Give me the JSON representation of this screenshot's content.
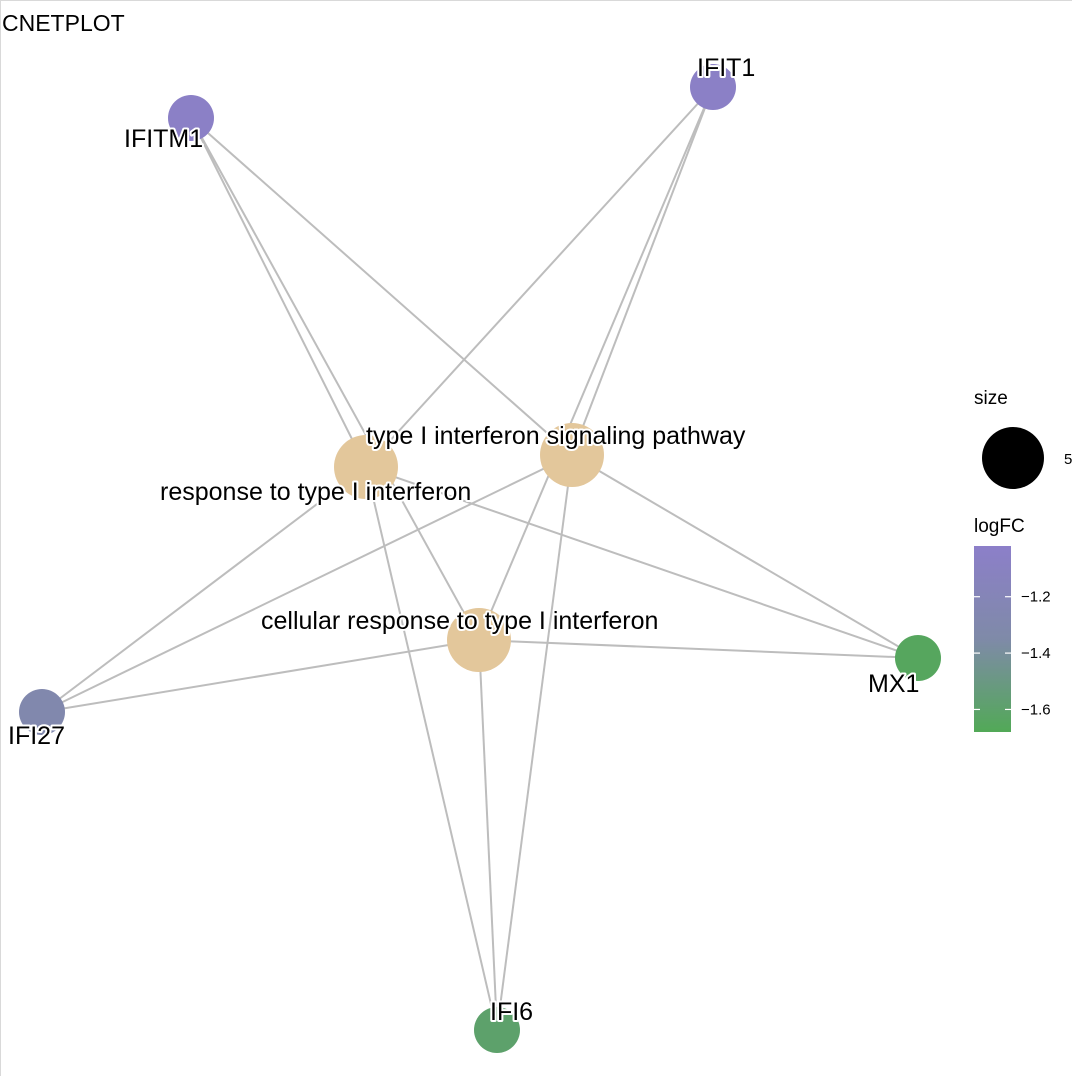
{
  "title": "CNETPLOT",
  "colors": {
    "edge": "#bdbdbd",
    "category_node": "#e3c79b",
    "logfc_high": "#8c7fc9",
    "logfc_mid": "#7f8aa8",
    "logfc_low": "#52a957",
    "size_swatch": "#000000"
  },
  "chart_data": {
    "type": "network",
    "categories": [
      {
        "id": "c_resp",
        "label": "response to type I interferon"
      },
      {
        "id": "c_sig",
        "label": "type I interferon signaling pathway"
      },
      {
        "id": "c_cell",
        "label": "cellular response to type I interferon"
      }
    ],
    "genes": [
      {
        "id": "g_ifitm1",
        "label": "IFITM1",
        "logFC": -1.05
      },
      {
        "id": "g_ifit1",
        "label": "IFIT1",
        "logFC": -1.05
      },
      {
        "id": "g_mx1",
        "label": "MX1",
        "logFC": -1.65
      },
      {
        "id": "g_ifi27",
        "label": "IFI27",
        "logFC": -1.3
      },
      {
        "id": "g_ifi6",
        "label": "IFI6",
        "logFC": -1.6
      }
    ],
    "edges": [
      [
        "c_resp",
        "g_ifitm1"
      ],
      [
        "c_resp",
        "g_ifit1"
      ],
      [
        "c_resp",
        "g_mx1"
      ],
      [
        "c_resp",
        "g_ifi27"
      ],
      [
        "c_resp",
        "g_ifi6"
      ],
      [
        "c_sig",
        "g_ifitm1"
      ],
      [
        "c_sig",
        "g_ifit1"
      ],
      [
        "c_sig",
        "g_mx1"
      ],
      [
        "c_sig",
        "g_ifi27"
      ],
      [
        "c_sig",
        "g_ifi6"
      ],
      [
        "c_cell",
        "g_ifitm1"
      ],
      [
        "c_cell",
        "g_ifit1"
      ],
      [
        "c_cell",
        "g_mx1"
      ],
      [
        "c_cell",
        "g_ifi27"
      ],
      [
        "c_cell",
        "g_ifi6"
      ]
    ],
    "legend": {
      "size": {
        "title": "size",
        "value": "5"
      },
      "color": {
        "title": "logFC",
        "ticks": [
          -1.2,
          -1.4,
          -1.6
        ],
        "tick_labels": [
          "−1.2",
          "−1.4",
          "−1.6"
        ],
        "range": [
          -1.68,
          -1.02
        ]
      }
    }
  }
}
